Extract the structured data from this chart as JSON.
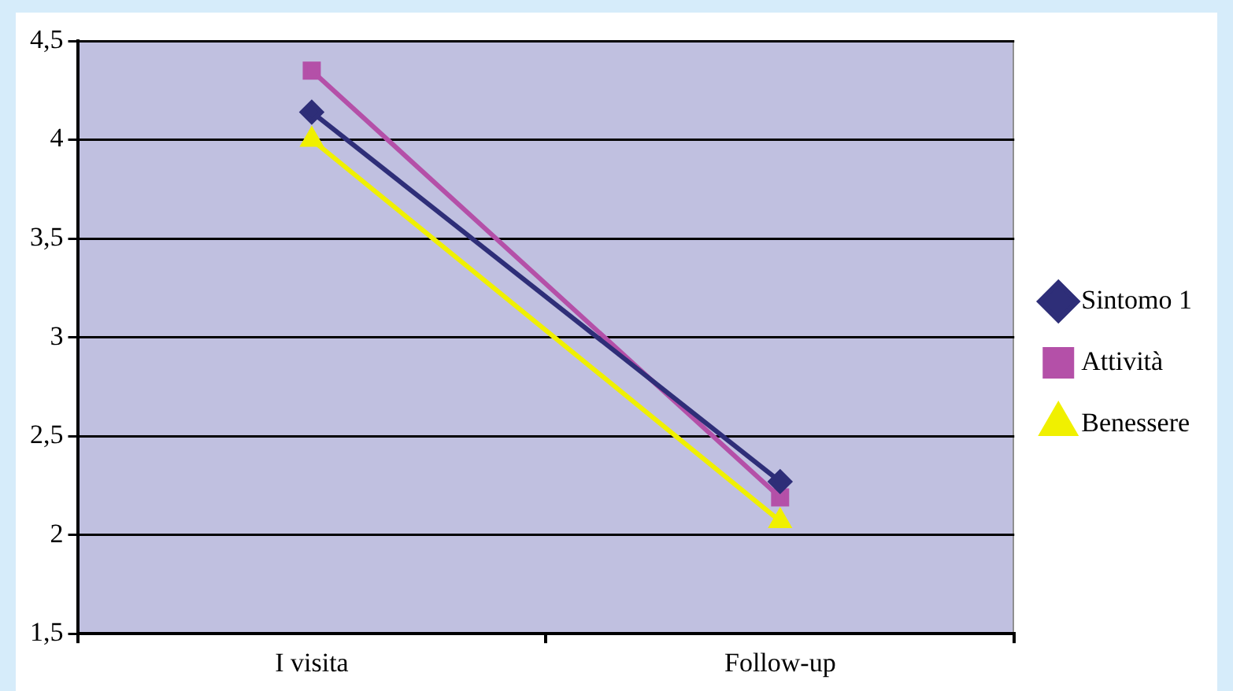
{
  "chart_data": {
    "type": "line",
    "categories": [
      "I visita",
      "Follow-up"
    ],
    "series": [
      {
        "name": "Sintomo 1",
        "color": "#2e2e78",
        "marker": "diamond",
        "values": [
          4.14,
          2.27
        ]
      },
      {
        "name": "Attività",
        "color": "#b450a8",
        "marker": "square",
        "values": [
          4.35,
          2.19
        ]
      },
      {
        "name": "Benessere",
        "color": "#f0f000",
        "marker": "triangle",
        "values": [
          4.0,
          2.07
        ]
      }
    ],
    "ylim": [
      1.5,
      4.5
    ],
    "yticks": [
      {
        "value": 1.5,
        "label": "1,5"
      },
      {
        "value": 2,
        "label": "2"
      },
      {
        "value": 2.5,
        "label": "2,5"
      },
      {
        "value": 3,
        "label": "3"
      },
      {
        "value": 3.5,
        "label": "3,5"
      },
      {
        "value": 4,
        "label": "4"
      },
      {
        "value": 4.5,
        "label": "4,5"
      }
    ],
    "grid": "y",
    "legend": "right",
    "line_style": "solid"
  }
}
